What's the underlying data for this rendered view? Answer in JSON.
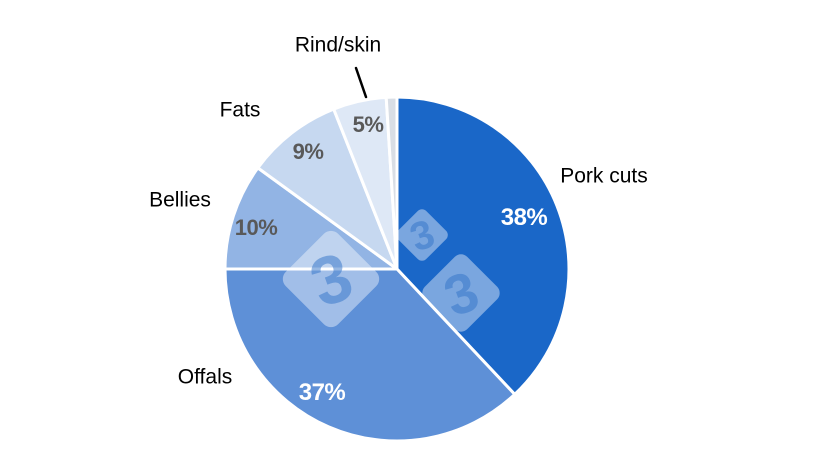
{
  "figure": {
    "background_color": "#ffffff",
    "label_color": "#000000",
    "pct_light_color": "#ffffff",
    "pct_dark_color": "#595959"
  },
  "chart_data": {
    "type": "pie",
    "title": "",
    "legend": "none",
    "start_angle_deg": 0,
    "direction": "clockwise",
    "donut": false,
    "slices": [
      {
        "label": "Pork cuts",
        "value": 38,
        "pct_label": "38%",
        "color": "#1A67C8",
        "pct_label_color": "#ffffff"
      },
      {
        "label": "Offals",
        "value": 37,
        "pct_label": "37%",
        "color": "#5E90D7",
        "pct_label_color": "#ffffff"
      },
      {
        "label": "Bellies",
        "value": 10,
        "pct_label": "10%",
        "color": "#92B4E4",
        "pct_label_color": "#595959"
      },
      {
        "label": "Fats",
        "value": 9,
        "pct_label": "9%",
        "color": "#C6D8F0",
        "pct_label_color": "#595959"
      },
      {
        "label": "Rind/skin",
        "value": 5,
        "pct_label": "5%",
        "color": "#DEE8F6",
        "pct_label_color": "#595959"
      },
      {
        "label": "",
        "value": 1,
        "pct_label": "",
        "color": "#D9DEE5",
        "pct_label_color": ""
      }
    ]
  },
  "watermark": {
    "glyph": "3",
    "color": "#2f72c8"
  }
}
